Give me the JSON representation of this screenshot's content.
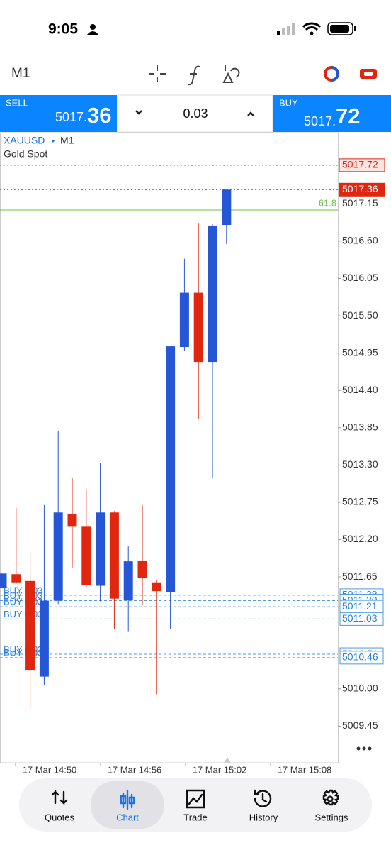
{
  "status_bar": {
    "time": "9:05"
  },
  "toolbar": {
    "timeframe": "M1"
  },
  "trade_panel": {
    "sell_label": "SELL",
    "sell_price_main": "5017.",
    "sell_price_big": "36",
    "lot": "0.03",
    "buy_label": "BUY",
    "buy_price_main": "5017.",
    "buy_price_big": "72"
  },
  "chart_header": {
    "symbol": "XAUUSD",
    "timeframe": "M1",
    "description": "Gold Spot"
  },
  "chart_data": {
    "type": "candlestick",
    "open": [
      5011.49,
      5011.69,
      5011.59,
      5010.18,
      5011.3,
      5012.58,
      5012.39,
      5011.52,
      5012.6,
      5011.31,
      5011.89,
      5011.57,
      5011.43,
      5015.04,
      5015.84,
      5014.82,
      5016.84
    ],
    "high": [
      5011.7,
      5012.67,
      5012.01,
      5012.71,
      5013.8,
      5013.11,
      5012.95,
      5013.33,
      5012.62,
      5012.1,
      5012.71,
      5011.6,
      5015.05,
      5016.34,
      5016.87,
      5016.85,
      5017.36
    ],
    "low": [
      5011.49,
      5011.55,
      5009.73,
      5010.06,
      5011.25,
      5011.78,
      5011.5,
      5011.29,
      5010.88,
      5010.84,
      5011.23,
      5009.92,
      5010.88,
      5014.98,
      5013.98,
      5013.11,
      5016.56
    ],
    "close": [
      5011.7,
      5011.57,
      5010.28,
      5011.3,
      5012.6,
      5012.39,
      5011.53,
      5012.6,
      5011.33,
      5011.88,
      5011.63,
      5011.44,
      5015.05,
      5015.84,
      5014.82,
      5016.83,
      5017.36
    ],
    "up_color": "#2456d6",
    "down_color": "#e0260f",
    "ylim": [
      5008.91,
      5018.2
    ],
    "yticks": [
      5017.15,
      {
        "value": 5016.6,
        "label": "5016.60"
      },
      5016.05,
      {
        "value": 5015.5,
        "label": "5015.50"
      },
      5014.95,
      {
        "value": 5014.4,
        "label": "5014.40"
      },
      5013.85,
      {
        "value": 5013.3,
        "label": "5013.30"
      },
      5012.75,
      {
        "value": 5012.2,
        "label": "5012.20"
      },
      5011.65,
      {
        "value": 5010,
        "label": "5010.00"
      },
      5009.45
    ],
    "xtick_labels": [
      "17 Mar 14:50",
      "17 Mar 14:56",
      "17 Mar 15:02",
      "17 Mar 15:08"
    ],
    "ask": 5017.72,
    "bid": 5017.36,
    "fib_level": {
      "label": "61.8",
      "value": 5017.06
    },
    "orders": [
      {
        "label": "BUY 0.03",
        "price": 5011.38
      },
      {
        "label": "BUY 0.03",
        "price": {
          "value": 5011.3,
          "label": "5011.30"
        }
      },
      {
        "label": "BUY 0.03",
        "price": 5011.21
      },
      {
        "label": "BUY 0.03",
        "price": 5011.03
      },
      {
        "label": "BUY 0.03",
        "price": 5010.51
      },
      {
        "label": "BUY 0.03",
        "price": 5010.46
      }
    ]
  },
  "nav": {
    "items": [
      "Quotes",
      "Chart",
      "Trade",
      "History",
      "Settings"
    ],
    "active": 1
  }
}
